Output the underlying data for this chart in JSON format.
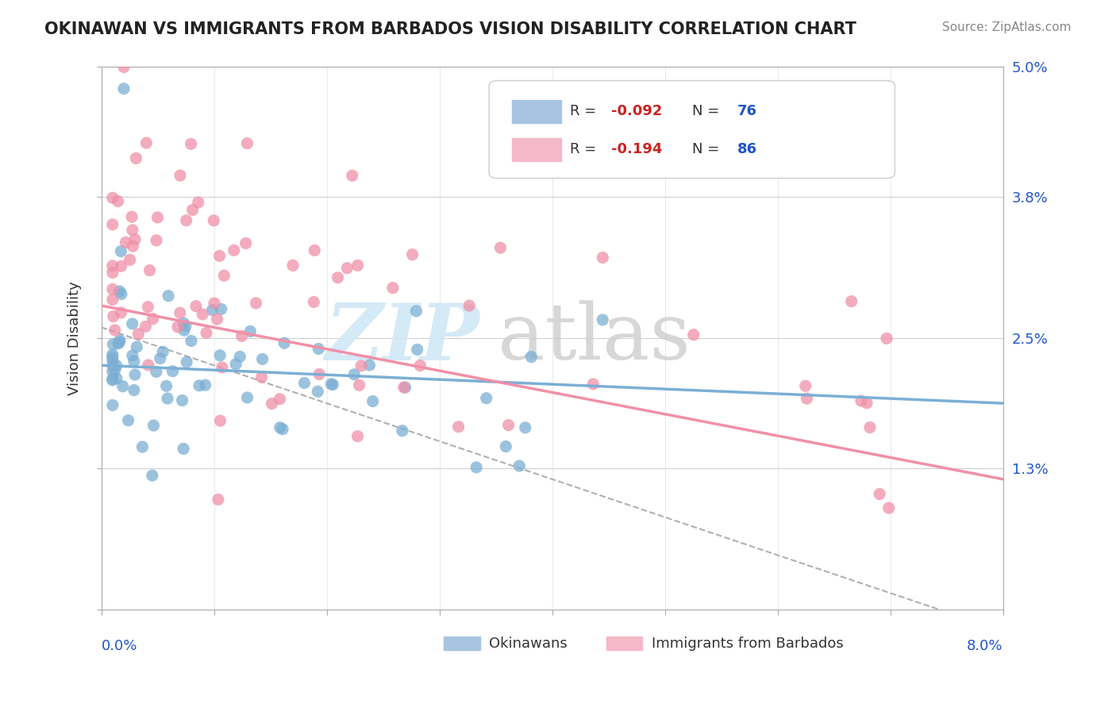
{
  "title": "OKINAWAN VS IMMIGRANTS FROM BARBADOS VISION DISABILITY CORRELATION CHART",
  "source": "Source: ZipAtlas.com",
  "ylabel": "Vision Disability",
  "xmin": 0.0,
  "xmax": 0.08,
  "ymin": 0.0,
  "ymax": 0.05,
  "ytick_vals": [
    0.0,
    0.013,
    0.025,
    0.038,
    0.05
  ],
  "ytick_labels": [
    "",
    "1.3%",
    "2.5%",
    "3.8%",
    "5.0%"
  ],
  "series1_color": "#7bafd4",
  "series2_color": "#f090a8",
  "legend1_box_color": "#a8c4e0",
  "legend2_box_color": "#f4b8c8",
  "trend1_color": "#7bafd4",
  "trend2_color": "#f090a8",
  "trend_dashed_color": "#b0b0b0",
  "r1": "-0.092",
  "n1": "76",
  "r2": "-0.194",
  "n2": "86",
  "r_color": "#cc2222",
  "n_color": "#2255cc",
  "axis_label_color": "#2255cc",
  "ylabel_color": "#333333",
  "watermark_zip_color": "#d0e8f5",
  "watermark_atlas_color": "#d0d0d0"
}
